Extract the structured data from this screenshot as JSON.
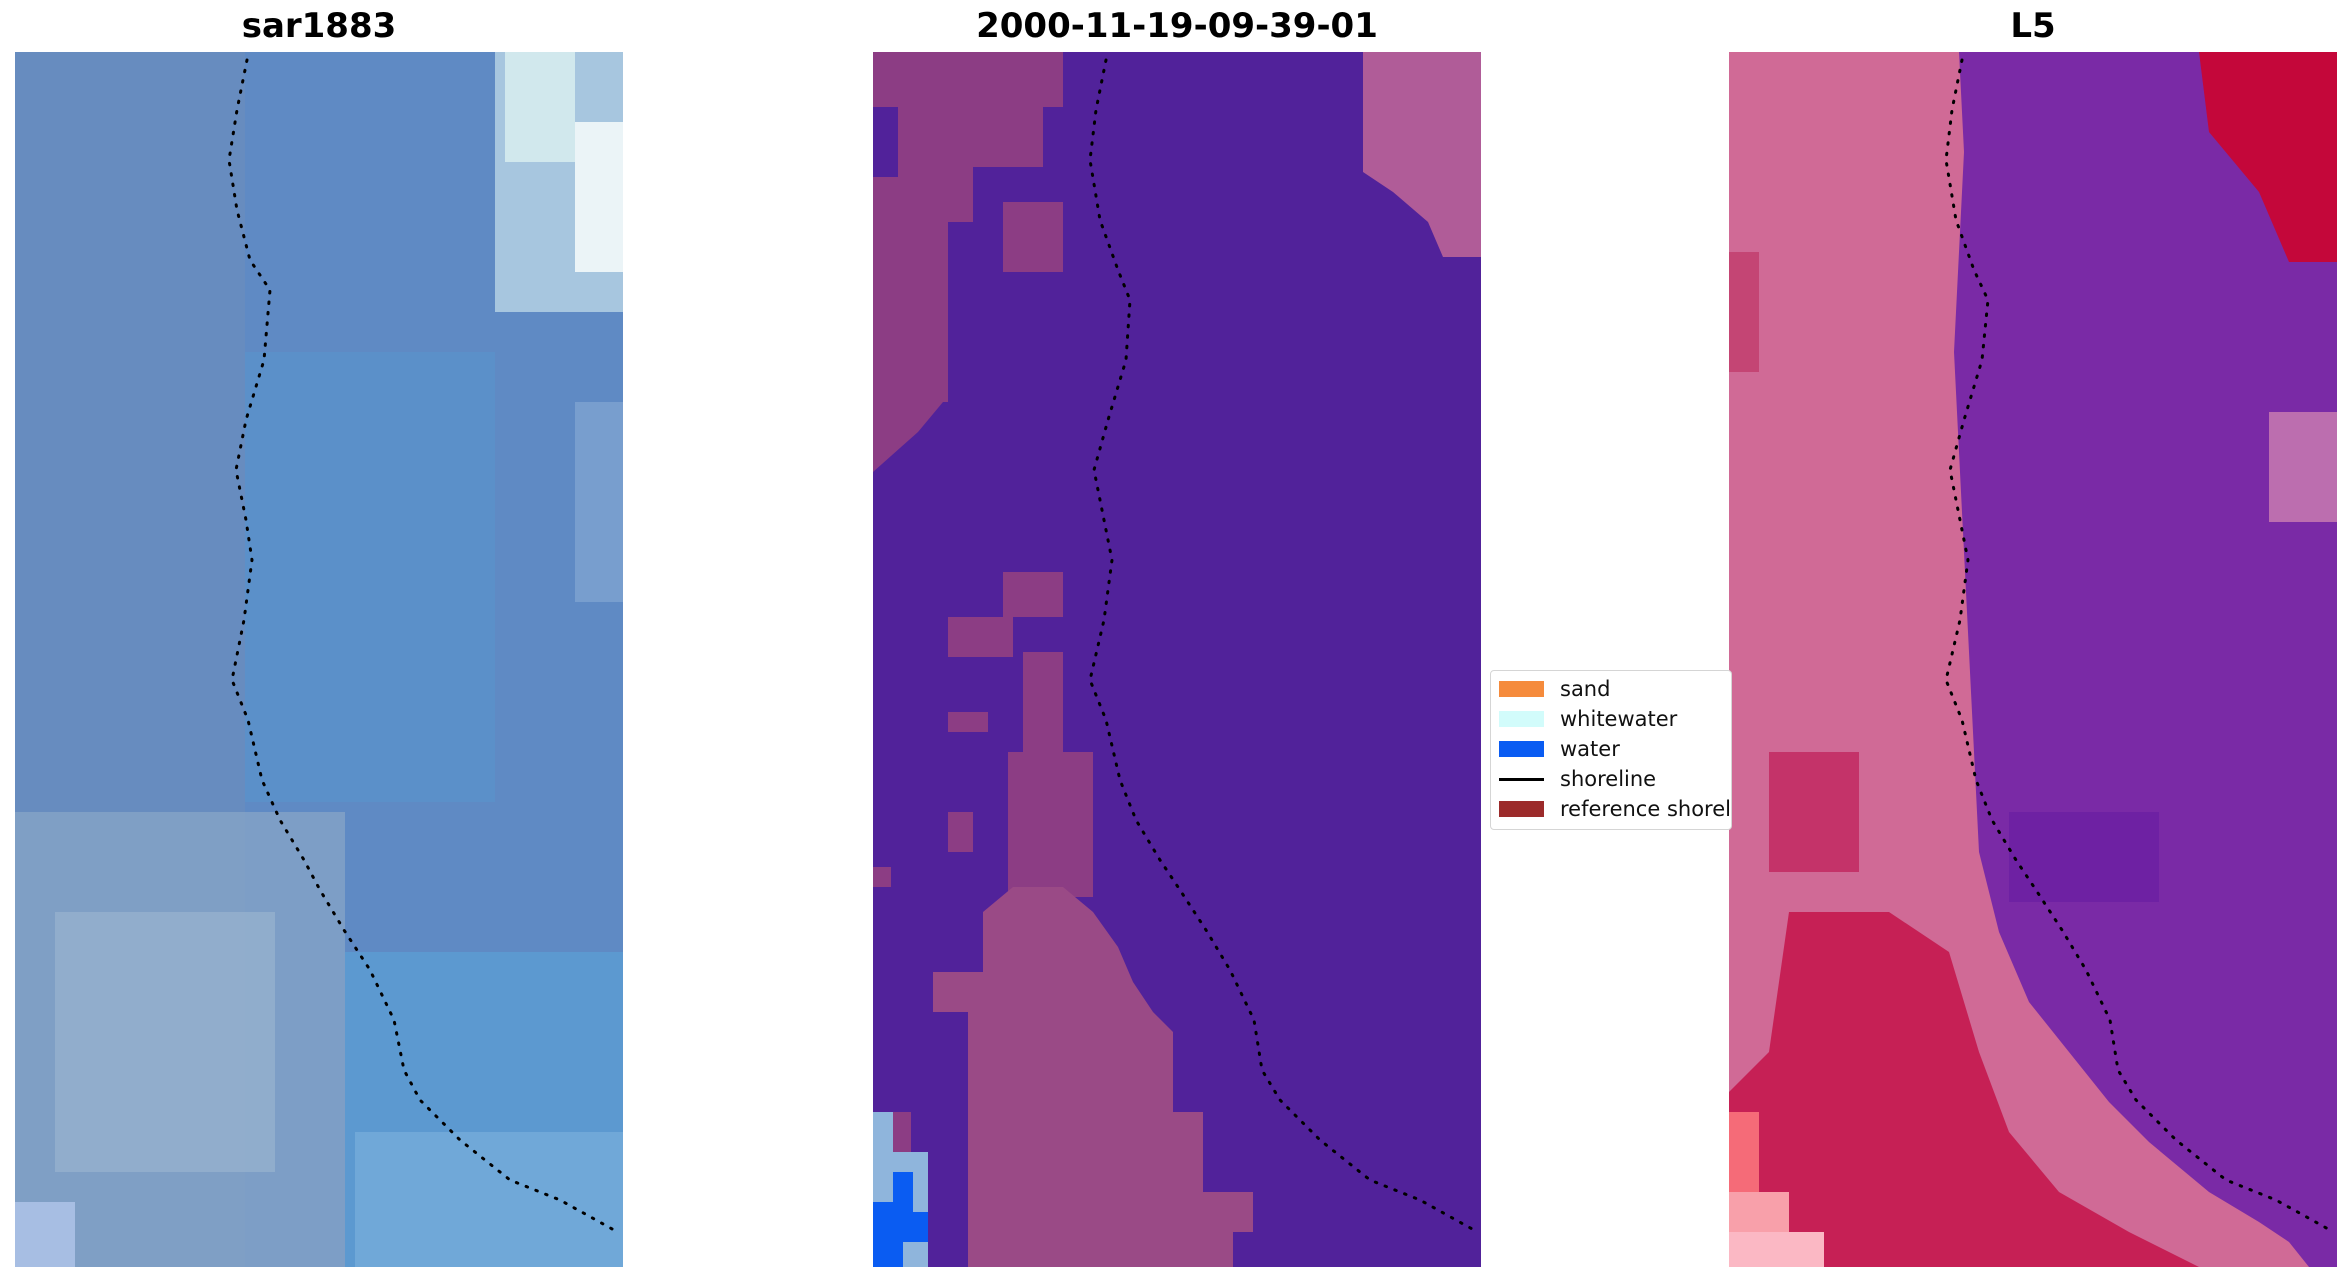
{
  "panels": [
    {
      "title": "sar1883",
      "kind": "rgb"
    },
    {
      "title": "2000-11-19-09-39-01",
      "kind": "classified"
    },
    {
      "title": "L5",
      "kind": "index"
    }
  ],
  "legend": {
    "items": [
      {
        "label": "sand",
        "color": "#f58b3c",
        "type": "patch"
      },
      {
        "label": "whitewater",
        "color": "#d2fcfb",
        "type": "patch"
      },
      {
        "label": "water",
        "color": "#0a5cf2",
        "type": "patch"
      },
      {
        "label": "shoreline",
        "color": "#000000",
        "type": "line"
      },
      {
        "label": "reference shoreline",
        "color": "#9c2b2b",
        "type": "patch"
      }
    ]
  },
  "colors": {
    "rgb_base": "#5f8ac4",
    "classified_water_bg": "#51229a",
    "classified_land": "#9a4a86",
    "classified_light_blue": "#8fb5dc",
    "index_land": "#d06a96",
    "index_water": "#7a2aa6",
    "index_red": "#c4073a",
    "shoreline_dots": "#000000"
  }
}
